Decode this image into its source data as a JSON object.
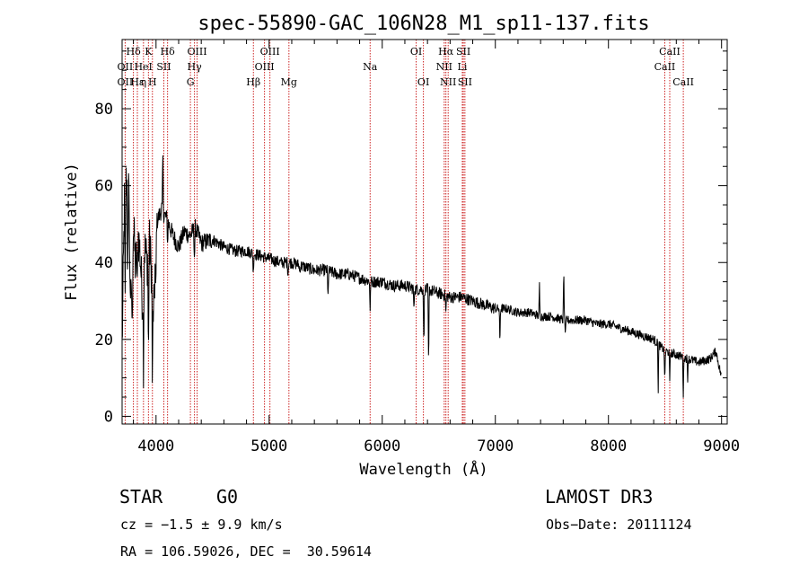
{
  "chart_data": {
    "type": "line",
    "title": "spec-55890-GAC_106N28_M1_sp11-137.fits",
    "xlabel": "Wavelength (Å)",
    "ylabel": "Flux (relative)",
    "xlim": [
      3700,
      9050
    ],
    "ylim": [
      -2,
      98
    ],
    "xticks": [
      4000,
      5000,
      6000,
      7000,
      8000,
      9000
    ],
    "yticks": [
      0,
      20,
      40,
      60,
      80
    ],
    "line_color": "#000000",
    "marker_color": "#cc2222",
    "spectrum_anchors": [
      [
        3700,
        18
      ],
      [
        3720,
        55
      ],
      [
        3740,
        62
      ],
      [
        3760,
        46
      ],
      [
        3780,
        28
      ],
      [
        3800,
        50
      ],
      [
        3820,
        38
      ],
      [
        3840,
        48
      ],
      [
        3860,
        42
      ],
      [
        3880,
        30
      ],
      [
        3900,
        44
      ],
      [
        3920,
        40
      ],
      [
        3940,
        46
      ],
      [
        3960,
        38
      ],
      [
        3980,
        25
      ],
      [
        4000,
        50
      ],
      [
        4050,
        54
      ],
      [
        4100,
        51
      ],
      [
        4150,
        47
      ],
      [
        4200,
        44
      ],
      [
        4250,
        48
      ],
      [
        4300,
        47
      ],
      [
        4350,
        49
      ],
      [
        4400,
        45
      ],
      [
        4500,
        46
      ],
      [
        4600,
        44
      ],
      [
        4700,
        43
      ],
      [
        4800,
        43
      ],
      [
        4900,
        42
      ],
      [
        5000,
        41
      ],
      [
        5100,
        40
      ],
      [
        5200,
        40
      ],
      [
        5300,
        39
      ],
      [
        5400,
        38
      ],
      [
        5500,
        38
      ],
      [
        5600,
        37
      ],
      [
        5700,
        37
      ],
      [
        5800,
        36
      ],
      [
        5900,
        35
      ],
      [
        6000,
        35
      ],
      [
        6100,
        34
      ],
      [
        6200,
        34
      ],
      [
        6300,
        33
      ],
      [
        6400,
        33
      ],
      [
        6500,
        32
      ],
      [
        6600,
        31
      ],
      [
        6700,
        31
      ],
      [
        6800,
        30
      ],
      [
        6900,
        29
      ],
      [
        7000,
        28
      ],
      [
        7100,
        28
      ],
      [
        7200,
        27
      ],
      [
        7300,
        27
      ],
      [
        7400,
        26
      ],
      [
        7500,
        26
      ],
      [
        7600,
        25
      ],
      [
        7700,
        25
      ],
      [
        7800,
        25
      ],
      [
        7900,
        24
      ],
      [
        8000,
        24
      ],
      [
        8100,
        23
      ],
      [
        8200,
        22
      ],
      [
        8300,
        21
      ],
      [
        8400,
        20
      ],
      [
        8500,
        17
      ],
      [
        8600,
        16
      ],
      [
        8700,
        15
      ],
      [
        8800,
        14
      ],
      [
        8900,
        15
      ],
      [
        8950,
        17
      ],
      [
        9000,
        10
      ]
    ],
    "spectrum_features": [
      [
        3727,
        -30
      ],
      [
        3750,
        -20
      ],
      [
        3760,
        20
      ],
      [
        3790,
        -18
      ],
      [
        3835,
        -14
      ],
      [
        3889,
        -22
      ],
      [
        3933,
        -32
      ],
      [
        3968,
        -28
      ],
      [
        3998,
        -20
      ],
      [
        4060,
        14
      ],
      [
        4102,
        -6
      ],
      [
        4340,
        -8
      ],
      [
        4860,
        -6
      ],
      [
        5167,
        -3
      ],
      [
        5270,
        -2
      ],
      [
        5520,
        -8
      ],
      [
        5893,
        -8
      ],
      [
        6280,
        -6
      ],
      [
        6368,
        -16
      ],
      [
        6410,
        -22
      ],
      [
        6563,
        -5
      ],
      [
        7040,
        -10
      ],
      [
        7390,
        8
      ],
      [
        7605,
        13
      ],
      [
        7620,
        -4
      ],
      [
        8440,
        -12
      ],
      [
        8498,
        -9
      ],
      [
        8542,
        -8
      ],
      [
        8662,
        -10
      ],
      [
        8700,
        -6
      ]
    ],
    "lines": [
      {
        "name": "Hδ",
        "wavelength": 3800,
        "row": 0
      },
      {
        "name": "OII",
        "wavelength": 3727,
        "row": 1
      },
      {
        "name": "OII",
        "wavelength": 3727,
        "row": 2
      },
      {
        "name": "Hε",
        "wavelength": 3835,
        "row": 2
      },
      {
        "name": "η",
        "wavelength": 3889,
        "row": 2
      },
      {
        "name": "HeI",
        "wavelength": 3888,
        "row": 1
      },
      {
        "name": "K",
        "wavelength": 3933,
        "row": 0
      },
      {
        "name": "H",
        "wavelength": 3968,
        "row": 2
      },
      {
        "name": "Hδ",
        "wavelength": 4102,
        "row": 0
      },
      {
        "name": "SII",
        "wavelength": 4069,
        "row": 1
      },
      {
        "name": "OIII",
        "wavelength": 4363,
        "row": 0
      },
      {
        "name": "Hγ",
        "wavelength": 4340,
        "row": 1
      },
      {
        "name": "G",
        "wavelength": 4304,
        "row": 2
      },
      {
        "name": "Hβ",
        "wavelength": 4861,
        "row": 2
      },
      {
        "name": "OIII",
        "wavelength": 5007,
        "row": 0
      },
      {
        "name": "OIII",
        "wavelength": 4959,
        "row": 1
      },
      {
        "name": "Mg",
        "wavelength": 5175,
        "row": 2
      },
      {
        "name": "Na",
        "wavelength": 5893,
        "row": 1
      },
      {
        "name": "OI",
        "wavelength": 6300,
        "row": 0
      },
      {
        "name": "OI",
        "wavelength": 6364,
        "row": 2
      },
      {
        "name": "Hα",
        "wavelength": 6563,
        "row": 0
      },
      {
        "name": "SII",
        "wavelength": 6717,
        "row": 0
      },
      {
        "name": "NII",
        "wavelength": 6548,
        "row": 1
      },
      {
        "name": "Li",
        "wavelength": 6708,
        "row": 1
      },
      {
        "name": "NII",
        "wavelength": 6583,
        "row": 2
      },
      {
        "name": "SII",
        "wavelength": 6731,
        "row": 2
      },
      {
        "name": "CaII",
        "wavelength": 8542,
        "row": 0
      },
      {
        "name": "CaII",
        "wavelength": 8498,
        "row": 1
      },
      {
        "name": "CaII",
        "wavelength": 8662,
        "row": 2
      }
    ]
  },
  "info": {
    "object_class": "STAR",
    "subclass": "G0",
    "survey": "LAMOST DR3",
    "cz": "cz = −1.5 ± 9.9 km/s",
    "obs_date": "Obs−Date: 20111124",
    "coords": "RA = 106.59026, DEC =  30.59614"
  }
}
